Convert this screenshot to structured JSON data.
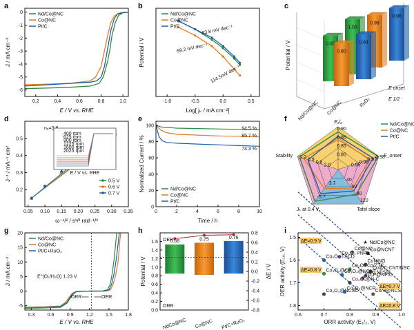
{
  "colors": {
    "green": "#2e8b3a",
    "orange": "#e07b20",
    "blue": "#1f5fa8",
    "red": "#b22222",
    "axis": "#111111",
    "zoneYellow": "#f5c040",
    "zonePink": "#e890b8",
    "zoneBlue": "#5aa8d8"
  },
  "panels": {
    "a": "a",
    "b": "b",
    "c": "c",
    "d": "d",
    "e": "e",
    "f": "f",
    "g": "g",
    "h": "h",
    "i": "i"
  },
  "chart_data": [
    {
      "id": "a",
      "type": "line",
      "xlabel": "E / V vs. RHE",
      "ylabel": "J / mA cm⁻²",
      "xlim": [
        0.1,
        1.05
      ],
      "ylim": [
        -6.5,
        0.3
      ],
      "xticks": [
        "0.2",
        "0.4",
        "0.6",
        "0.8",
        "1.0"
      ],
      "yticks": [
        "0",
        "-1",
        "-2",
        "-3",
        "-4",
        "-5",
        "-6"
      ],
      "legend": [
        "Nd/Co@NC",
        "Co@NC",
        "Pt/C"
      ],
      "series": [
        {
          "name": "Nd/Co@NC",
          "x": [
            0.1,
            0.3,
            0.5,
            0.7,
            0.78,
            0.82,
            0.86,
            0.88,
            0.9,
            0.93,
            0.96,
            1.0,
            1.05
          ],
          "y": [
            -5.9,
            -5.85,
            -5.8,
            -5.7,
            -5.5,
            -5.0,
            -3.8,
            -2.9,
            -1.8,
            -0.8,
            -0.25,
            -0.05,
            0
          ]
        },
        {
          "name": "Co@NC",
          "x": [
            0.1,
            0.3,
            0.5,
            0.7,
            0.75,
            0.8,
            0.83,
            0.86,
            0.89,
            0.92,
            0.96,
            1.0,
            1.05
          ],
          "y": [
            -5.6,
            -5.55,
            -5.5,
            -5.3,
            -5.0,
            -4.2,
            -3.0,
            -1.8,
            -0.8,
            -0.3,
            -0.08,
            -0.02,
            0
          ]
        },
        {
          "name": "Pt/C",
          "x": [
            0.1,
            0.3,
            0.5,
            0.7,
            0.76,
            0.8,
            0.83,
            0.86,
            0.89,
            0.92,
            0.95,
            1.0,
            1.05
          ],
          "y": [
            -5.7,
            -5.6,
            -5.5,
            -5.4,
            -5.3,
            -5.0,
            -4.2,
            -2.8,
            -1.4,
            -0.5,
            -0.15,
            -0.03,
            0
          ]
        }
      ]
    },
    {
      "id": "b",
      "type": "line",
      "xlabel": "Log[ jₖ / mA cm⁻²]",
      "ylabel": "Potential / V",
      "xlim": [
        -1.2,
        0.65
      ],
      "ylim": [
        0.78,
        0.99
      ],
      "xticks": [
        "-1.0",
        "-0.5",
        "0.0",
        "0.5"
      ],
      "yticks": [],
      "legend": [
        "Nd/Co@NC",
        "Co@NC",
        "Pt/C"
      ],
      "annotations": [
        "83.8 mV dec⁻¹",
        "69.2 mV dec⁻¹",
        "114.5mV dec⁻¹"
      ],
      "series": [
        {
          "name": "Nd/Co@NC",
          "x": [
            -0.8,
            -0.5,
            -0.2,
            0.0,
            0.2,
            0.3
          ],
          "y": [
            0.96,
            0.94,
            0.915,
            0.895,
            0.87,
            0.855
          ]
        },
        {
          "name": "Co@NC",
          "x": [
            -0.8,
            -0.5,
            -0.2,
            0.0,
            0.2,
            0.3
          ],
          "y": [
            0.945,
            0.925,
            0.9,
            0.875,
            0.845,
            0.83
          ]
        },
        {
          "name": "Pt/C",
          "x": [
            -0.8,
            -0.5,
            -0.2,
            0.0,
            0.2,
            0.3
          ],
          "y": [
            0.96,
            0.94,
            0.92,
            0.9,
            0.875,
            0.86
          ]
        }
      ]
    },
    {
      "id": "c",
      "type": "bar",
      "ylabel": "Potential / V",
      "categories": [
        "Nd/Co@NC",
        "Co@NC",
        "RuO₂"
      ],
      "axis_rows": [
        "E onset",
        "E 1/2"
      ],
      "series": [
        {
          "name": "E onset",
          "values": [
            0.85,
            1.03,
            0.98
          ]
        },
        {
          "name": "E 1/2",
          "values": [
            0.98,
            0.8,
            0.84
          ]
        }
      ],
      "labels": [
        "0.85",
        "1.03",
        "0.98",
        "0.80",
        "0.84",
        "0.98"
      ]
    },
    {
      "id": "d",
      "type": "scatter",
      "xlabel": "ω⁻¹/² / s¹/² rad⁻¹/²",
      "ylabel": "J⁻¹ / mA⁻¹ cm²",
      "xlim": [
        0.04,
        0.35
      ],
      "ylim": [
        0.1,
        0.6
      ],
      "xticks": [
        "0.05",
        "0.10",
        "0.15",
        "0.20",
        "0.25",
        "0.30",
        "0.35"
      ],
      "yticks": [
        "0.2",
        "0.3",
        "0.4",
        "0.5"
      ],
      "note": "nₑ=3.8",
      "legend": [
        "0.5 V",
        "0.6 V",
        "0.7 V"
      ],
      "inset": {
        "xlabel": "E / V vs. RHE",
        "rpm": [
          "400 rpm",
          "625 rpm",
          "900 rpm",
          "1225 rpm",
          "1600 rpm",
          "2025 rpm"
        ]
      },
      "series": [
        {
          "name": "0.5 V",
          "x": [
            0.06,
            0.1,
            0.15,
            0.2,
            0.25,
            0.31
          ],
          "y": [
            0.15,
            0.22,
            0.3,
            0.37,
            0.44,
            0.52
          ]
        },
        {
          "name": "0.6 V",
          "x": [
            0.06,
            0.1,
            0.15,
            0.2,
            0.25,
            0.31
          ],
          "y": [
            0.15,
            0.22,
            0.3,
            0.37,
            0.45,
            0.53
          ]
        },
        {
          "name": "0.7 V",
          "x": [
            0.06,
            0.1,
            0.15,
            0.2,
            0.25,
            0.31
          ],
          "y": [
            0.15,
            0.22,
            0.31,
            0.38,
            0.46,
            0.55
          ]
        }
      ]
    },
    {
      "id": "e",
      "type": "line",
      "xlabel": "Time / h",
      "ylabel": "Normalized Current / %",
      "xlim": [
        0,
        10
      ],
      "ylim": [
        0,
        105
      ],
      "xticks": [
        "0",
        "2",
        "4",
        "6",
        "8",
        "10"
      ],
      "yticks": [
        "0",
        "20",
        "40",
        "60",
        "80",
        "100"
      ],
      "legend": [
        "Nd/Co@NC",
        "Co@NC",
        "Pt/C"
      ],
      "annotations": [
        "94.5 %",
        "85.7 %",
        "74.3 %"
      ],
      "series": [
        {
          "name": "Nd/Co@NC",
          "x": [
            0,
            0.5,
            1,
            2,
            4,
            6,
            8,
            10
          ],
          "y": [
            100,
            98,
            97.5,
            96.5,
            96,
            95.5,
            95,
            94.5
          ]
        },
        {
          "name": "Co@NC",
          "x": [
            0,
            0.5,
            1,
            2,
            4,
            6,
            8,
            10
          ],
          "y": [
            100,
            94,
            91,
            89,
            88,
            87,
            86.5,
            85.7
          ]
        },
        {
          "name": "Pt/C",
          "x": [
            0,
            0.3,
            0.6,
            1,
            2,
            4,
            6,
            8,
            10
          ],
          "y": [
            100,
            86,
            81,
            79,
            78,
            77,
            76,
            75,
            74.3
          ]
        }
      ]
    },
    {
      "id": "f",
      "type": "radar",
      "axes": [
        "E₁/₂",
        "E_onset",
        "Tafel slope",
        "Jₖ at 0.4 V",
        "Stability"
      ],
      "legend": [
        "Nd/Co@NC",
        "Co@NC",
        "Pt/C"
      ],
      "scale_labels": [
        "0.90",
        "0.86",
        "0.85",
        "0.80",
        "0.98",
        "0.97",
        "0.96",
        "0.95",
        "120",
        "80",
        "60",
        "40",
        "1.0",
        "0.9",
        "0.8",
        "-3.7",
        "-5.7",
        "2.0"
      ],
      "series": [
        {
          "name": "Nd/Co@NC",
          "values": [
            0.88,
            0.99,
            0.72,
            0.92,
            0.95
          ]
        },
        {
          "name": "Co@NC",
          "values": [
            0.7,
            0.78,
            0.56,
            0.55,
            0.85
          ]
        },
        {
          "name": "Pt/C",
          "values": [
            0.78,
            0.86,
            0.62,
            0.7,
            0.74
          ]
        }
      ]
    },
    {
      "id": "g",
      "type": "line",
      "xlabel": "E / V vs. RHE",
      "ylabel": "J / mA cm⁻²",
      "xlim": [
        0.2,
        1.8
      ],
      "ylim": [
        -6.5,
        20
      ],
      "xticks": [
        "0.3",
        "0.6",
        "0.9",
        "1.2",
        "1.5",
        "1.8"
      ],
      "yticks": [
        "-5",
        "0",
        "5",
        "10",
        "15",
        "20"
      ],
      "legend": [
        "Nd/Co@NC",
        "Co@NC",
        "Pt/C+RuO₂"
      ],
      "annotations": [
        "E⁰(O₂/H₂O) 1.23 V",
        "ORR",
        "OER"
      ],
      "series": [
        {
          "name": "Nd/Co@NC",
          "x": [
            0.2,
            0.5,
            0.75,
            0.85,
            0.9,
            0.95,
            1.0,
            1.2,
            1.4,
            1.48,
            1.52,
            1.55,
            1.58,
            1.62
          ],
          "y": [
            -5.9,
            -5.8,
            -5.6,
            -4.2,
            -2.5,
            -1.0,
            -0.2,
            0,
            0,
            0.5,
            2.5,
            6,
            11,
            20
          ]
        },
        {
          "name": "Co@NC",
          "x": [
            0.2,
            0.5,
            0.75,
            0.83,
            0.88,
            0.93,
            1.0,
            1.2,
            1.45,
            1.52,
            1.56,
            1.6,
            1.64,
            1.68
          ],
          "y": [
            -5.5,
            -5.4,
            -5.1,
            -3.8,
            -2.2,
            -0.8,
            -0.1,
            0,
            0,
            0.4,
            2,
            5,
            10,
            20
          ]
        },
        {
          "name": "Pt/C+RuO₂",
          "x": [
            0.2,
            0.5,
            0.75,
            0.85,
            0.9,
            0.95,
            1.0,
            1.2,
            1.42,
            1.5,
            1.54,
            1.58,
            1.62,
            1.66
          ],
          "y": [
            -5.6,
            -5.5,
            -5.3,
            -3.9,
            -2.1,
            -0.7,
            -0.1,
            0,
            0,
            0.4,
            2.2,
            6,
            12,
            20
          ]
        }
      ]
    },
    {
      "id": "h",
      "type": "bar",
      "ylabel": "Potential / V",
      "y2label": "ΔE / V",
      "ylim": [
        0,
        1.8
      ],
      "y2lim": [
        -0.8,
        0.8
      ],
      "yticks": [
        "0.0",
        "0.2",
        "0.4",
        "0.6",
        "0.8",
        "1.0",
        "1.2",
        "1.4",
        "1.6"
      ],
      "y2ticks": [
        "0.8",
        "0.6",
        "0.4",
        "0.2",
        "0.0",
        "-0.2",
        "-0.4",
        "-0.6",
        "-0.8"
      ],
      "top_label": "OER",
      "bottom_label": "ORR",
      "categories": [
        "NdCo@NC",
        "Co@NC",
        "Pt/C+RuO₂"
      ],
      "bar_top": [
        1.53,
        1.57,
        1.61
      ],
      "bar_bottom": [
        0.85,
        0.82,
        0.85
      ],
      "values": [
        0.68,
        0.75,
        0.76
      ],
      "value_labels": [
        "0.68",
        "0.75",
        "0.76"
      ]
    },
    {
      "id": "i",
      "type": "scatter",
      "xlabel": "ORR activity (E₁/₂, V)",
      "ylabel": "OER activity (E₁₀, V)",
      "xlim": [
        0.6,
        1.0
      ],
      "ylim": [
        1.82,
        1.48
      ],
      "xticks": [
        "0.6",
        "0.7",
        "0.8",
        "0.9",
        "1.0"
      ],
      "yticks": [
        "1.5",
        "1.6",
        "1.7",
        "1.8"
      ],
      "zone_labels": [
        "ΔE=0.9 V",
        "ΔE=0.8 V",
        "ΔE=0.7 V",
        "ΔE=0.8 V"
      ],
      "points": [
        {
          "name": "Nd/Co@NC",
          "x": 0.86,
          "y": 1.52,
          "highlight": true
        },
        {
          "name": "Co@NCNT",
          "x": 0.87,
          "y": 1.57
        },
        {
          "name": "Co@NC",
          "x": 0.81,
          "y": 1.565
        },
        {
          "name": "Co₃O₄ PNRs",
          "x": 0.76,
          "y": 1.585
        },
        {
          "name": "Co₂O₃-TSCD",
          "x": 0.7,
          "y": 1.6
        },
        {
          "name": "Co₂O₄/Co/ZTC",
          "x": 0.8,
          "y": 1.64
        },
        {
          "name": "CoNiNG",
          "x": 0.86,
          "y": 1.62
        },
        {
          "name": "Co@C-CNT/NSC",
          "x": 0.88,
          "y": 1.65
        },
        {
          "name": "Co₃O₄@NCNT",
          "x": 0.77,
          "y": 1.665
        },
        {
          "name": "(Co,Ni)S/C",
          "x": 0.86,
          "y": 1.67
        },
        {
          "name": "Co₂P@NP/C",
          "x": 0.85,
          "y": 1.68
        },
        {
          "name": "Co₃O₄@N-C",
          "x": 0.8,
          "y": 1.7
        },
        {
          "name": "Co₃O₄@Co",
          "x": 0.7,
          "y": 1.66
        },
        {
          "name": "Co₂O₃@NCSC",
          "x": 0.7,
          "y": 1.75
        },
        {
          "name": "Co₂O₃@NCR",
          "x": 0.78,
          "y": 1.74
        },
        {
          "name": "CoNi@NCS",
          "x": 0.89,
          "y": 1.75
        }
      ]
    }
  ]
}
